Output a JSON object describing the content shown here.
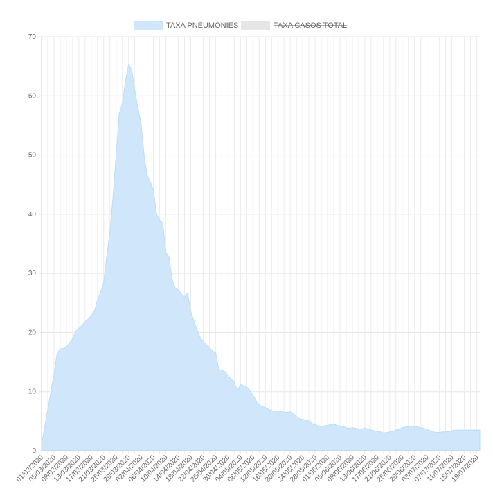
{
  "chart_data": {
    "type": "area",
    "legend": [
      {
        "label": "TAXA PNEUMONIES",
        "color": "#cfe6fb",
        "hidden": false
      },
      {
        "label": "TAXA CASOS TOTAL",
        "color": "#e6e6e6",
        "hidden": true
      }
    ],
    "legend_position": "top-center",
    "ylim": [
      0,
      70
    ],
    "yticks": [
      0,
      10,
      20,
      30,
      40,
      50,
      60,
      70
    ],
    "grid": true,
    "x_start": "01/03/2020",
    "x_end": "20/07/2020",
    "xtick_labels": [
      "01/03/2020",
      "05/03/2020",
      "09/03/2020",
      "13/03/2020",
      "17/03/2020",
      "21/03/2020",
      "25/03/2020",
      "29/03/2020",
      "02/04/2020",
      "06/04/2020",
      "10/04/2020",
      "14/04/2020",
      "18/04/2020",
      "22/04/2020",
      "26/04/2020",
      "30/04/2020",
      "04/05/2020",
      "08/05/2020",
      "12/05/2020",
      "16/05/2020",
      "20/05/2020",
      "24/05/2020",
      "28/05/2020",
      "01/06/2020",
      "05/06/2020",
      "09/06/2020",
      "13/06/2020",
      "17/06/2020",
      "21/06/2020",
      "25/06/2020",
      "29/06/2020",
      "03/07/2020",
      "07/07/2020",
      "11/07/2020",
      "15/07/2020",
      "19/07/2020"
    ],
    "series": [
      {
        "name": "TAXA PNEUMONIES",
        "color": "#cfe6fb",
        "points": [
          [
            "01/03/2020",
            1.0
          ],
          [
            "02/03/2020",
            4.0
          ],
          [
            "03/03/2020",
            7.0
          ],
          [
            "04/03/2020",
            10.0
          ],
          [
            "05/03/2020",
            13.0
          ],
          [
            "06/03/2020",
            16.5
          ],
          [
            "07/03/2020",
            17.2
          ],
          [
            "08/03/2020",
            17.3
          ],
          [
            "09/03/2020",
            17.6
          ],
          [
            "10/03/2020",
            18.2
          ],
          [
            "11/03/2020",
            19.0
          ],
          [
            "12/03/2020",
            20.2
          ],
          [
            "13/03/2020",
            20.7
          ],
          [
            "14/03/2020",
            21.2
          ],
          [
            "15/03/2020",
            21.8
          ],
          [
            "16/03/2020",
            22.3
          ],
          [
            "17/03/2020",
            22.8
          ],
          [
            "18/03/2020",
            23.6
          ],
          [
            "19/03/2020",
            25.5
          ],
          [
            "20/03/2020",
            26.8
          ],
          [
            "21/03/2020",
            28.5
          ],
          [
            "22/03/2020",
            33.0
          ],
          [
            "23/03/2020",
            37.0
          ],
          [
            "24/03/2020",
            43.0
          ],
          [
            "25/03/2020",
            50.0
          ],
          [
            "26/03/2020",
            57.0
          ],
          [
            "27/03/2020",
            58.7
          ],
          [
            "28/03/2020",
            62.5
          ],
          [
            "29/03/2020",
            65.3
          ],
          [
            "30/03/2020",
            64.5
          ],
          [
            "31/03/2020",
            61.0
          ],
          [
            "01/04/2020",
            58.0
          ],
          [
            "02/04/2020",
            55.5
          ],
          [
            "03/04/2020",
            50.0
          ],
          [
            "04/04/2020",
            46.5
          ],
          [
            "05/04/2020",
            45.5
          ],
          [
            "06/04/2020",
            44.0
          ],
          [
            "07/04/2020",
            40.0
          ],
          [
            "08/04/2020",
            39.0
          ],
          [
            "09/04/2020",
            38.5
          ],
          [
            "10/04/2020",
            33.5
          ],
          [
            "11/04/2020",
            32.8
          ],
          [
            "12/04/2020",
            29.0
          ],
          [
            "13/04/2020",
            27.5
          ],
          [
            "14/04/2020",
            27.2
          ],
          [
            "15/04/2020",
            26.5
          ],
          [
            "16/04/2020",
            26.0
          ],
          [
            "17/04/2020",
            26.7
          ],
          [
            "18/04/2020",
            23.5
          ],
          [
            "19/04/2020",
            22.0
          ],
          [
            "20/04/2020",
            20.5
          ],
          [
            "21/04/2020",
            19.2
          ],
          [
            "22/04/2020",
            18.5
          ],
          [
            "23/04/2020",
            18.0
          ],
          [
            "24/04/2020",
            17.5
          ],
          [
            "25/04/2020",
            16.8
          ],
          [
            "26/04/2020",
            16.7
          ],
          [
            "27/04/2020",
            13.8
          ],
          [
            "28/04/2020",
            13.6
          ],
          [
            "29/04/2020",
            13.4
          ],
          [
            "30/04/2020",
            12.6
          ],
          [
            "01/05/2020",
            12.2
          ],
          [
            "02/05/2020",
            11.5
          ],
          [
            "03/05/2020",
            10.2
          ],
          [
            "04/05/2020",
            11.2
          ],
          [
            "05/05/2020",
            11.0
          ],
          [
            "06/05/2020",
            10.8
          ],
          [
            "07/05/2020",
            10.2
          ],
          [
            "08/05/2020",
            9.4
          ],
          [
            "09/05/2020",
            8.5
          ],
          [
            "10/05/2020",
            7.7
          ],
          [
            "11/05/2020",
            7.5
          ],
          [
            "12/05/2020",
            7.3
          ],
          [
            "13/05/2020",
            7.0
          ],
          [
            "14/05/2020",
            6.8
          ],
          [
            "15/05/2020",
            6.6
          ],
          [
            "16/05/2020",
            6.6
          ],
          [
            "17/05/2020",
            6.7
          ],
          [
            "18/05/2020",
            6.5
          ],
          [
            "19/05/2020",
            6.5
          ],
          [
            "20/05/2020",
            6.6
          ],
          [
            "21/05/2020",
            6.3
          ],
          [
            "22/05/2020",
            5.8
          ],
          [
            "23/05/2020",
            5.4
          ],
          [
            "24/05/2020",
            5.3
          ],
          [
            "25/05/2020",
            5.2
          ],
          [
            "26/05/2020",
            5.0
          ],
          [
            "27/05/2020",
            4.6
          ],
          [
            "28/05/2020",
            4.4
          ],
          [
            "29/05/2020",
            4.2
          ],
          [
            "30/05/2020",
            4.1
          ],
          [
            "31/05/2020",
            4.2
          ],
          [
            "01/06/2020",
            4.3
          ],
          [
            "02/06/2020",
            4.4
          ],
          [
            "03/06/2020",
            4.5
          ],
          [
            "04/06/2020",
            4.3
          ],
          [
            "05/06/2020",
            4.2
          ],
          [
            "06/06/2020",
            4.1
          ],
          [
            "07/06/2020",
            3.9
          ],
          [
            "08/06/2020",
            3.8
          ],
          [
            "09/06/2020",
            3.9
          ],
          [
            "10/06/2020",
            3.8
          ],
          [
            "11/06/2020",
            3.7
          ],
          [
            "12/06/2020",
            3.7
          ],
          [
            "13/06/2020",
            3.8
          ],
          [
            "14/06/2020",
            3.7
          ],
          [
            "15/06/2020",
            3.5
          ],
          [
            "16/06/2020",
            3.4
          ],
          [
            "17/06/2020",
            3.3
          ],
          [
            "18/06/2020",
            3.2
          ],
          [
            "19/06/2020",
            3.0
          ],
          [
            "20/06/2020",
            3.1
          ],
          [
            "21/06/2020",
            3.2
          ],
          [
            "22/06/2020",
            3.3
          ],
          [
            "23/06/2020",
            3.5
          ],
          [
            "24/06/2020",
            3.6
          ],
          [
            "25/06/2020",
            3.9
          ],
          [
            "26/06/2020",
            4.0
          ],
          [
            "27/06/2020",
            4.1
          ],
          [
            "28/06/2020",
            4.2
          ],
          [
            "29/06/2020",
            4.1
          ],
          [
            "30/06/2020",
            4.0
          ],
          [
            "01/07/2020",
            3.9
          ],
          [
            "02/07/2020",
            3.8
          ],
          [
            "03/07/2020",
            3.6
          ],
          [
            "04/07/2020",
            3.4
          ],
          [
            "05/07/2020",
            3.2
          ],
          [
            "06/07/2020",
            3.1
          ],
          [
            "07/07/2020",
            3.1
          ],
          [
            "08/07/2020",
            3.2
          ],
          [
            "09/07/2020",
            3.2
          ],
          [
            "10/07/2020",
            3.3
          ],
          [
            "11/07/2020",
            3.4
          ],
          [
            "12/07/2020",
            3.5
          ],
          [
            "13/07/2020",
            3.5
          ],
          [
            "14/07/2020",
            3.5
          ],
          [
            "15/07/2020",
            3.5
          ],
          [
            "16/07/2020",
            3.5
          ],
          [
            "17/07/2020",
            3.5
          ],
          [
            "18/07/2020",
            3.5
          ],
          [
            "19/07/2020",
            3.5
          ],
          [
            "20/07/2020",
            3.5
          ]
        ]
      }
    ]
  }
}
